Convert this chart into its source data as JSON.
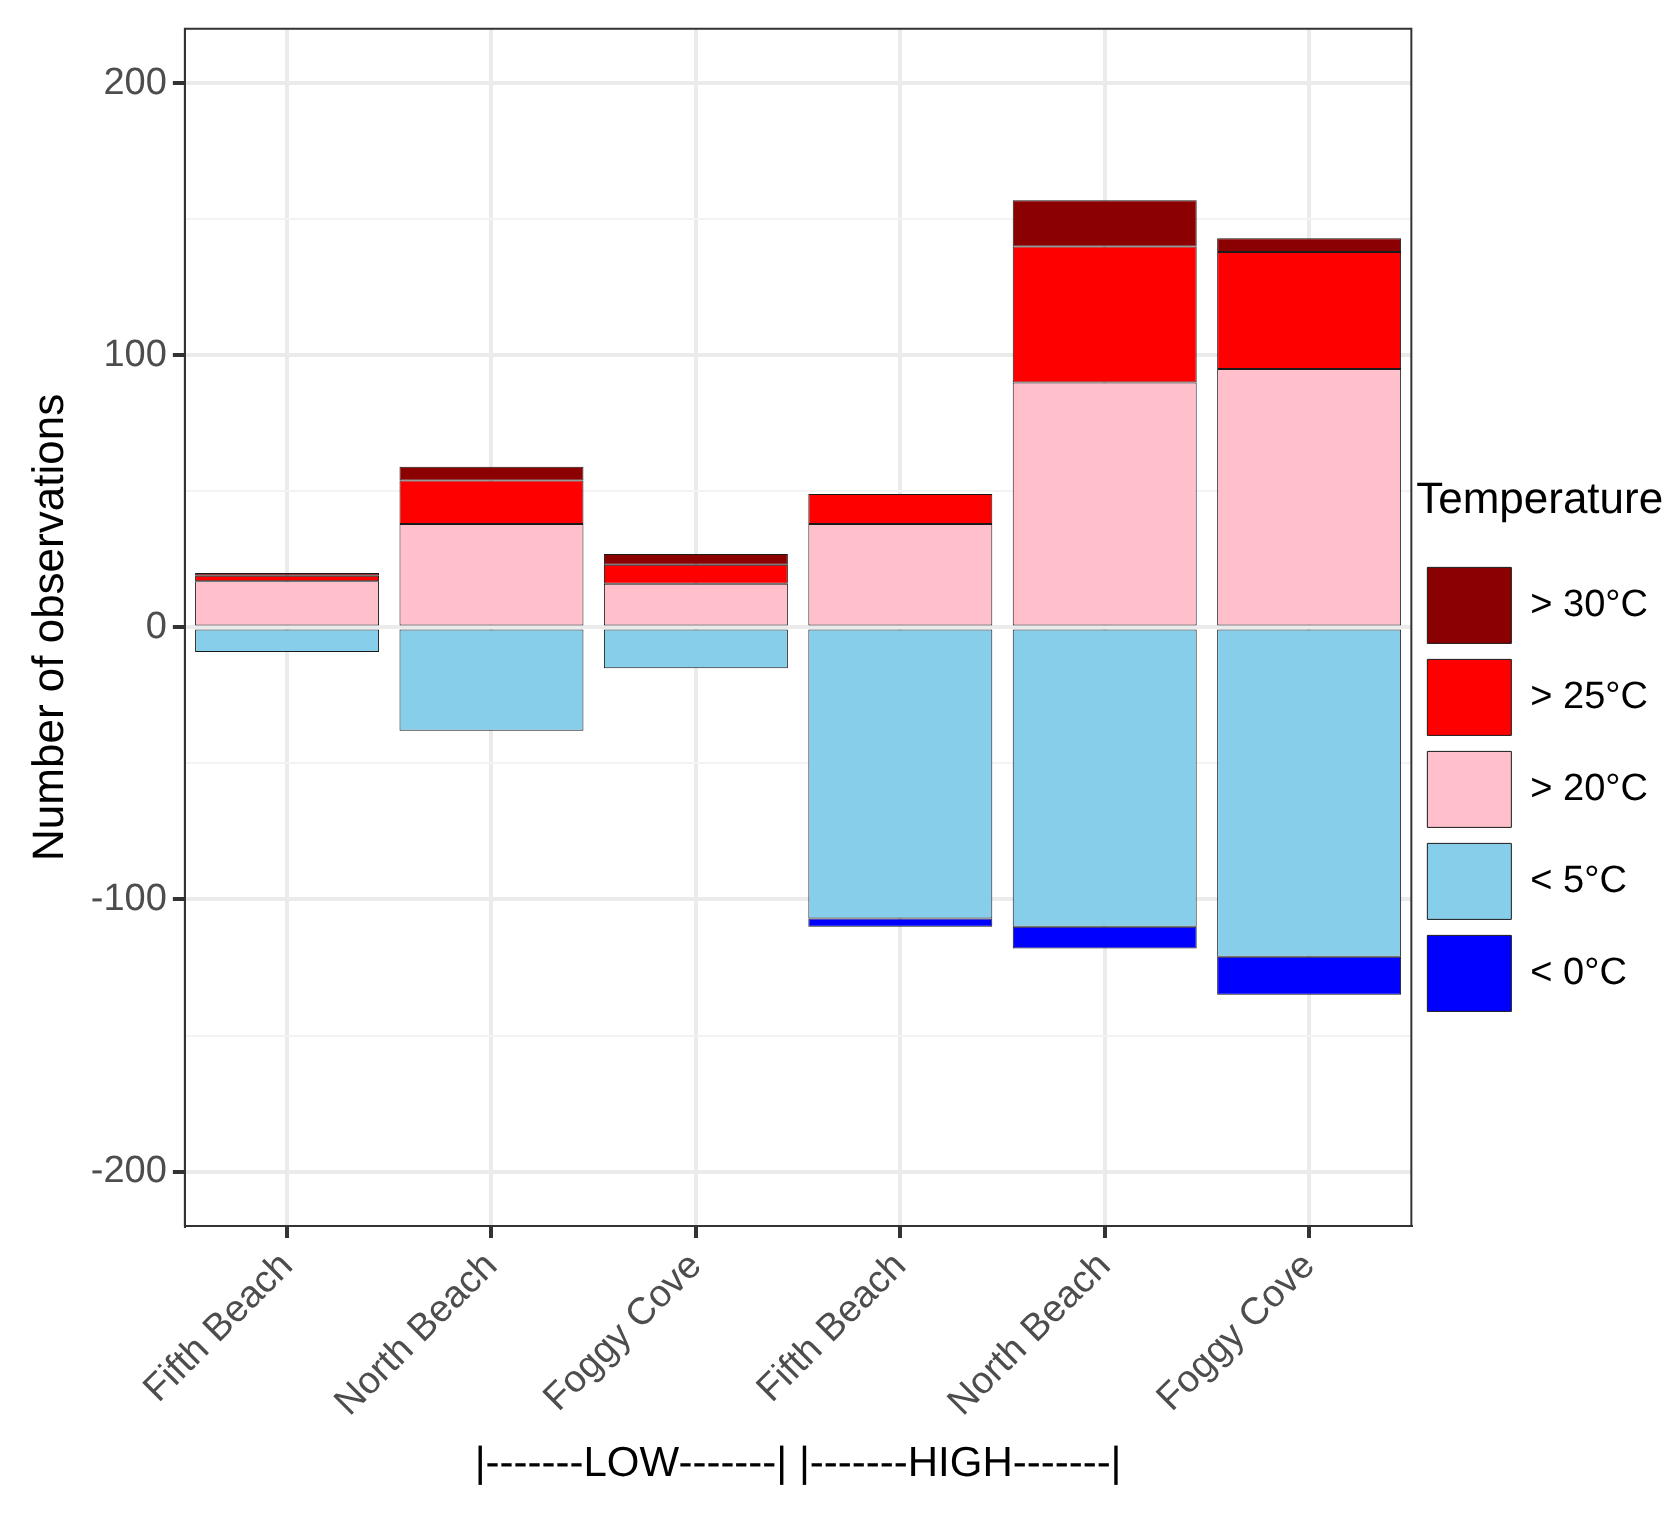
{
  "chart_data": {
    "type": "bar",
    "ylabel": "Number of observations",
    "xlabel": "|-------LOW-------| |-------HIGH-------|",
    "legend_title": "Temperature",
    "categories": [
      "Fifth Beach",
      "North Beach",
      "Foggy Cove",
      "Fifth Beach",
      "North Beach",
      "Foggy Cove"
    ],
    "stacked": true,
    "series": [
      {
        "name": "> 20°C",
        "color": "#ffc0cb",
        "values": [
          17,
          38,
          16,
          38,
          90,
          95
        ]
      },
      {
        "name": "> 25°C",
        "color": "#ff0000",
        "values": [
          2,
          16,
          7,
          11,
          50,
          43
        ]
      },
      {
        "name": "> 30°C",
        "color": "#8b0000",
        "values": [
          1,
          5,
          4,
          null,
          17,
          5
        ]
      },
      {
        "name": "< 5°C",
        "color": "#87ceeb",
        "values": [
          -9,
          -38,
          -15,
          -107,
          -110,
          -121
        ]
      },
      {
        "name": "< 0°C",
        "color": "#0000ff",
        "values": [
          null,
          null,
          null,
          -3,
          -8,
          -14
        ]
      }
    ],
    "ylim": [
      -220,
      220
    ],
    "yticks": [
      -200,
      {
        "value": -150,
        "label": null
      },
      -100,
      {
        "value": -50,
        "label": null
      },
      0,
      {
        "value": 50,
        "label": null
      },
      100,
      {
        "value": 150,
        "label": null
      },
      200
    ],
    "grid": true,
    "legend": "right"
  }
}
